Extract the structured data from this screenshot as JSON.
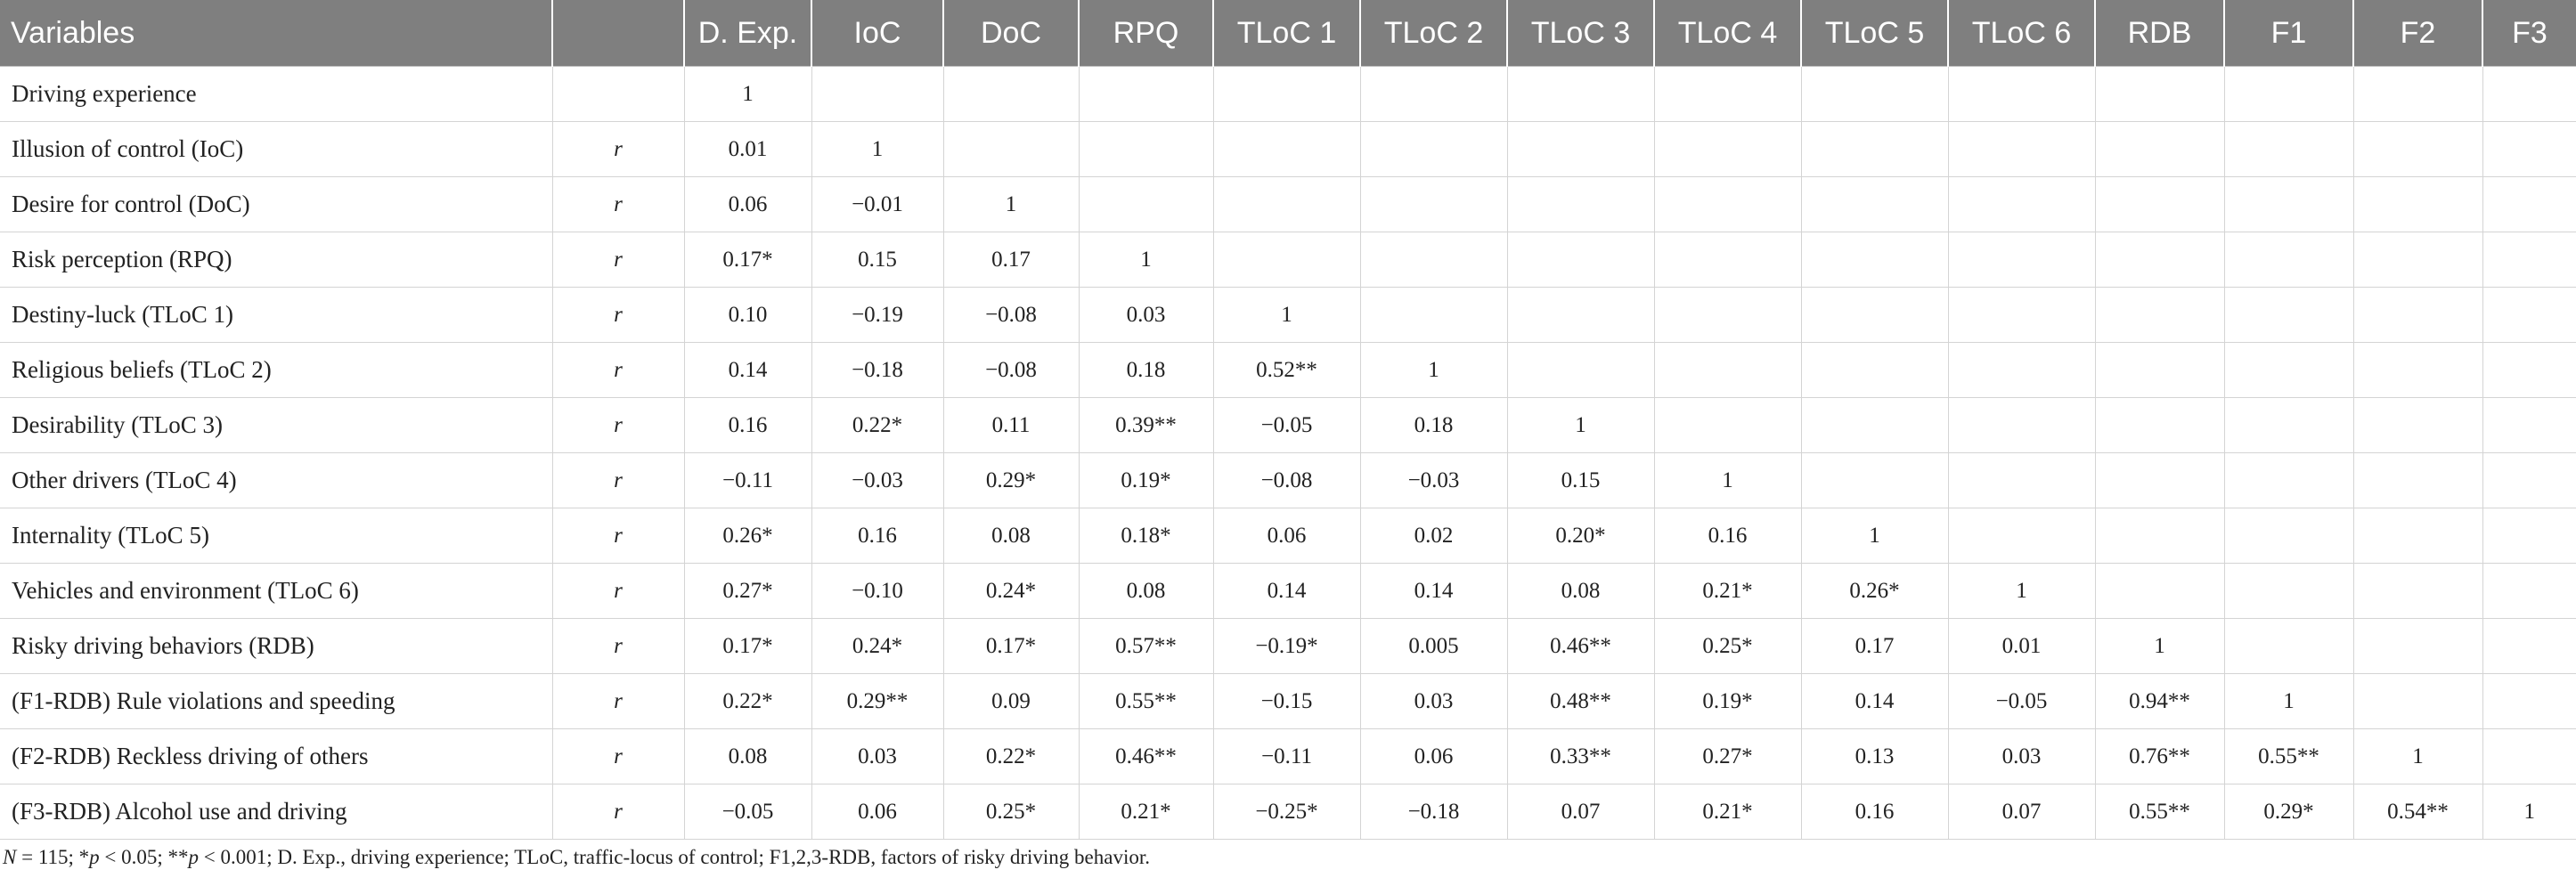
{
  "table": {
    "headers": [
      "Variables",
      "",
      "D. Exp.",
      "IoC",
      "DoC",
      "RPQ",
      "TLoC 1",
      "TLoC 2",
      "TLoC 3",
      "TLoC 4",
      "TLoC 5",
      "TLoC 6",
      "RDB",
      "F1",
      "F2",
      "F3"
    ],
    "rows": [
      {
        "variable": "Driving experience",
        "stat": "",
        "values": [
          "1",
          "",
          "",
          "",
          "",
          "",
          "",
          "",
          "",
          "",
          "",
          "",
          "",
          ""
        ]
      },
      {
        "variable": "Illusion of control (IoC)",
        "stat": "r",
        "values": [
          "0.01",
          "1",
          "",
          "",
          "",
          "",
          "",
          "",
          "",
          "",
          "",
          "",
          "",
          ""
        ]
      },
      {
        "variable": "Desire for control (DoC)",
        "stat": "r",
        "values": [
          "0.06",
          "−0.01",
          "1",
          "",
          "",
          "",
          "",
          "",
          "",
          "",
          "",
          "",
          "",
          ""
        ]
      },
      {
        "variable": "Risk perception (RPQ)",
        "stat": "r",
        "values": [
          "0.17*",
          "0.15",
          "0.17",
          "1",
          "",
          "",
          "",
          "",
          "",
          "",
          "",
          "",
          "",
          ""
        ]
      },
      {
        "variable": "Destiny-luck (TLoC 1)",
        "stat": "r",
        "values": [
          "0.10",
          "−0.19",
          "−0.08",
          "0.03",
          "1",
          "",
          "",
          "",
          "",
          "",
          "",
          "",
          "",
          ""
        ]
      },
      {
        "variable": "Religious beliefs (TLoC 2)",
        "stat": "r",
        "values": [
          "0.14",
          "−0.18",
          "−0.08",
          "0.18",
          "0.52**",
          "1",
          "",
          "",
          "",
          "",
          "",
          "",
          "",
          ""
        ]
      },
      {
        "variable": "Desirability (TLoC 3)",
        "stat": "r",
        "values": [
          "0.16",
          "0.22*",
          "0.11",
          "0.39**",
          "−0.05",
          "0.18",
          "1",
          "",
          "",
          "",
          "",
          "",
          "",
          ""
        ]
      },
      {
        "variable": "Other drivers (TLoC 4)",
        "stat": "r",
        "values": [
          "−0.11",
          "−0.03",
          "0.29*",
          "0.19*",
          "−0.08",
          "−0.03",
          "0.15",
          "1",
          "",
          "",
          "",
          "",
          "",
          ""
        ]
      },
      {
        "variable": "Internality (TLoC 5)",
        "stat": "r",
        "values": [
          "0.26*",
          "0.16",
          "0.08",
          "0.18*",
          "0.06",
          "0.02",
          "0.20*",
          "0.16",
          "1",
          "",
          "",
          "",
          "",
          ""
        ]
      },
      {
        "variable": "Vehicles and environment (TLoC 6)",
        "stat": "r",
        "values": [
          "0.27*",
          "−0.10",
          "0.24*",
          "0.08",
          "0.14",
          "0.14",
          "0.08",
          "0.21*",
          "0.26*",
          "1",
          "",
          "",
          "",
          ""
        ]
      },
      {
        "variable": "Risky driving behaviors (RDB)",
        "stat": "r",
        "values": [
          "0.17*",
          "0.24*",
          "0.17*",
          "0.57**",
          "−0.19*",
          "0.005",
          "0.46**",
          "0.25*",
          "0.17",
          "0.01",
          "1",
          "",
          "",
          ""
        ]
      },
      {
        "variable": "(F1-RDB) Rule violations and speeding",
        "stat": "r",
        "values": [
          "0.22*",
          "0.29**",
          "0.09",
          "0.55**",
          "−0.15",
          "0.03",
          "0.48**",
          "0.19*",
          "0.14",
          "−0.05",
          "0.94**",
          "1",
          "",
          ""
        ]
      },
      {
        "variable": "(F2-RDB) Reckless driving of others",
        "stat": "r",
        "values": [
          "0.08",
          "0.03",
          "0.22*",
          "0.46**",
          "−0.11",
          "0.06",
          "0.33**",
          "0.27*",
          "0.13",
          "0.03",
          "0.76**",
          "0.55**",
          "1",
          ""
        ]
      },
      {
        "variable": "(F3-RDB) Alcohol use and driving",
        "stat": "r",
        "values": [
          "−0.05",
          "0.06",
          "0.25*",
          "0.21*",
          "−0.25*",
          "−0.18",
          "0.07",
          "0.21*",
          "0.16",
          "0.07",
          "0.55**",
          "0.29*",
          "0.54**",
          "1"
        ]
      }
    ]
  },
  "footnote": {
    "n_label": "N",
    "n_text": " = 115; *",
    "p1_label": "p",
    "p1_text": " < 0.05; **",
    "p2_label": "p",
    "p2_text": " < 0.001; D. Exp., driving experience; TLoC, traffic-locus of control; F1,2,3-RDB, factors of risky driving behavior."
  }
}
